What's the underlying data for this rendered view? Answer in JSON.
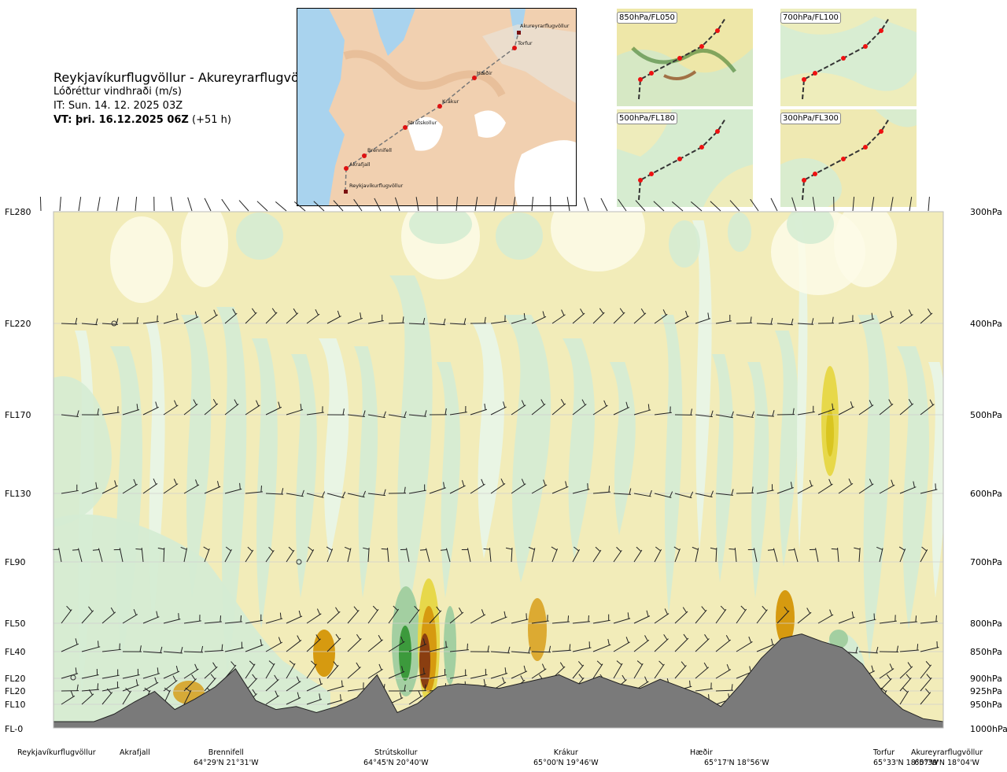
{
  "header": {
    "route": "Reykjavíkurflugvöllur - Akureyrarflugvöllur",
    "variable": "Lóðréttur vindhraði (m/s)",
    "issue_time": "IT: Sun. 14. 12. 2025 03Z",
    "valid_label": "VT: þri. 16.12.2025 06Z",
    "valid_offset": "(+51 h)"
  },
  "map": {
    "places": [
      "Akureyrarflugvöllur",
      "Torfur",
      "Hæðir",
      "Krákur",
      "Strútskollur",
      "Brennifell",
      "Akrafjall",
      "Reykjavíkurflugvöllur"
    ]
  },
  "panels": [
    {
      "label": "850hPa/FL050"
    },
    {
      "label": "700hPa/FL100"
    },
    {
      "label": "500hPa/FL180"
    },
    {
      "label": "300hPa/FL300"
    }
  ],
  "colors": {
    "strong_up": "#8a3e10",
    "moderate_up": "#d69a10",
    "weak_up": "#e7d84a",
    "slight_up": "#f2ecb9",
    "neutral": "#fdfbe8",
    "slight_down": "#e8f6e6",
    "weak_down": "#d5ecd3",
    "moderate_down": "#a3cfa1",
    "strong_down": "#3c9a3c",
    "terrain": "#7a7a7a"
  },
  "levels": [
    {
      "fl": "FL280",
      "pressure": "300hPa"
    },
    {
      "fl": "FL220",
      "pressure": "400hPa"
    },
    {
      "fl": "FL170",
      "pressure": "500hPa"
    },
    {
      "fl": "FL130",
      "pressure": "600hPa"
    },
    {
      "fl": "FL90",
      "pressure": "700hPa"
    },
    {
      "fl": "FL50",
      "pressure": "800hPa"
    },
    {
      "fl": "FL40",
      "pressure": "850hPa"
    },
    {
      "fl": "FL20",
      "pressure": "900hPa"
    },
    {
      "fl": "FL20",
      "pressure": "925hPa"
    },
    {
      "fl": "FL10",
      "pressure": "950hPa"
    },
    {
      "fl": "FL-0",
      "pressure": "1000hPa"
    }
  ],
  "waypoints": [
    {
      "name": "Reykjavíkurflugvöllur",
      "coord": ""
    },
    {
      "name": "Akrafjall",
      "coord": ""
    },
    {
      "name": "Brennifell",
      "coord": "64°29'N 21°31'W"
    },
    {
      "name": "Strútskollur",
      "coord": "64°45'N 20°40'W"
    },
    {
      "name": "Krákur",
      "coord": "65°00'N 19°46'W"
    },
    {
      "name": "Hæðir",
      "coord": "65°17'N 18°56'W"
    },
    {
      "name": "Torfur",
      "coord": "65°33'N 18°07'W"
    },
    {
      "name": "Akureyrarflugvöllur",
      "coord": "65°39'N 18°04'W"
    }
  ],
  "chart_data": {
    "type": "heatmap",
    "title": "Reykjavíkurflugvöllur - Akureyrarflugvöllur",
    "subtitle": "Lóðréttur vindhraði (m/s)",
    "x_axis": "route cross-section, Reykjavíkurflugvöllur to Akureyrarflugvöllur",
    "y_axis_left": [
      "FL280",
      "FL220",
      "FL170",
      "FL130",
      "FL90",
      "FL50",
      "FL40",
      "FL20",
      "FL20",
      "FL10",
      "FL-0"
    ],
    "y_axis_right": [
      "300hPa",
      "400hPa",
      "500hPa",
      "600hPa",
      "700hPa",
      "800hPa",
      "850hPa",
      "900hPa",
      "925hPa",
      "950hPa",
      "1000hPa"
    ],
    "wind_barb_levels": [
      "400hPa",
      "500hPa",
      "600hPa",
      "700hPa",
      "800hPa",
      "850hPa",
      "900hPa",
      "925hPa",
      "950hPa"
    ],
    "terrain_profile": [
      0,
      0,
      0,
      0.5,
      1.3,
      2.0,
      0.8,
      1.5,
      2.3,
      3.5,
      1.4,
      0.8,
      1.0,
      0.6,
      1.0,
      1.6,
      3.1,
      0.6,
      1.2,
      2.3,
      2.5,
      2.4,
      2.2,
      2.5,
      2.8,
      3.1,
      2.5,
      3.0,
      2.5,
      2.2,
      2.8,
      2.3,
      1.8,
      1.0,
      2.5,
      4.2,
      5.5,
      5.8,
      5.3,
      4.9,
      3.8,
      2.0,
      0.8,
      0.2,
      0
    ],
    "grid": true,
    "legend": "none"
  }
}
